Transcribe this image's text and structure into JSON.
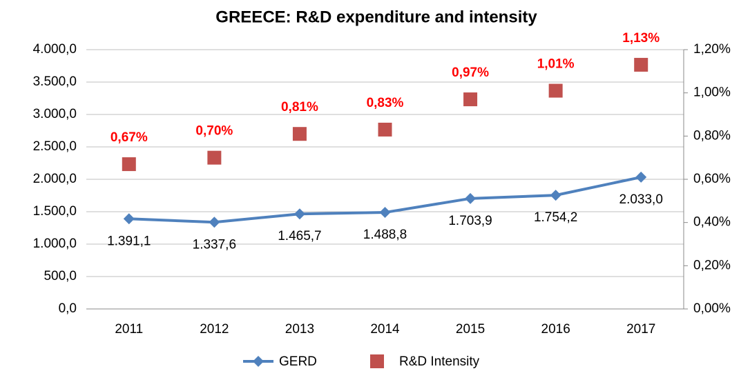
{
  "chart_data": {
    "type": "line",
    "title": "GREECE: R&D expenditure and intensity",
    "categories": [
      "2011",
      "2012",
      "2013",
      "2014",
      "2015",
      "2016",
      "2017"
    ],
    "series": [
      {
        "name": "GERD",
        "color": "#4f81bd",
        "values": [
          1391.1,
          1337.6,
          1465.7,
          1488.8,
          1703.9,
          1754.2,
          2033.0
        ],
        "value_labels": [
          "1.391,1",
          "1.337,6",
          "1.465,7",
          "1.488,8",
          "1.703,9",
          "1.754,2",
          "2.033,0"
        ]
      },
      {
        "name": "R&D Intensity",
        "color": "#c0504d",
        "axis": "y2",
        "values": [
          0.67,
          0.7,
          0.81,
          0.83,
          0.97,
          1.01,
          1.13
        ],
        "value_labels": [
          "0,67%",
          "0,70%",
          "0,81%",
          "0,83%",
          "0,97%",
          "1,01%",
          "1,13%"
        ]
      }
    ],
    "ylim": [
      0,
      4000
    ],
    "yticks": [
      {
        "value": 0,
        "label": "0,0"
      },
      {
        "value": 500,
        "label": "500,0"
      },
      {
        "value": 1000,
        "label": "1.000,0"
      },
      {
        "value": 1500,
        "label": "1.500,0"
      },
      {
        "value": 2000,
        "label": "2.000,0"
      },
      {
        "value": 2500,
        "label": "2.500,0"
      },
      {
        "value": 3000,
        "label": "3.000,0"
      },
      {
        "value": 3500,
        "label": "3.500,0"
      },
      {
        "value": 4000,
        "label": "4.000,0"
      }
    ],
    "y2lim": [
      0,
      1.2
    ],
    "y2ticks": [
      {
        "value": 0,
        "label": "0,00%"
      },
      {
        "value": 0.2,
        "label": "0,20%"
      },
      {
        "value": 0.4,
        "label": "0,40%"
      },
      {
        "value": 0.6,
        "label": "0,60%"
      },
      {
        "value": 0.8,
        "label": "0,80%"
      },
      {
        "value": 1.0,
        "label": "1,00%"
      },
      {
        "value": 1.2,
        "label": "1,20%"
      }
    ],
    "grid": true,
    "legend": "bottom"
  }
}
